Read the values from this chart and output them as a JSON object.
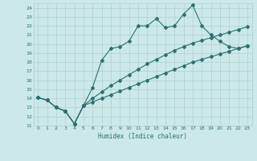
{
  "title": "",
  "xlabel": "Humidex (Indice chaleur)",
  "ylabel": "",
  "bg_color": "#cce8e8",
  "grid_color": "#b0d0d0",
  "line_color": "#2d7070",
  "xlim": [
    -0.5,
    23.5
  ],
  "ylim": [
    11,
    24.5
  ],
  "xticks": [
    0,
    1,
    2,
    3,
    4,
    5,
    6,
    7,
    8,
    9,
    10,
    11,
    12,
    13,
    14,
    15,
    16,
    17,
    18,
    19,
    20,
    21,
    22,
    23
  ],
  "yticks": [
    11,
    12,
    13,
    14,
    15,
    16,
    17,
    18,
    19,
    20,
    21,
    22,
    23,
    24
  ],
  "line1_x": [
    0,
    1,
    2,
    3,
    4,
    5,
    6,
    7,
    8,
    9,
    10,
    11,
    12,
    13,
    14,
    15,
    16,
    17,
    18,
    19,
    20,
    21,
    22,
    23
  ],
  "line1_y": [
    14.1,
    13.8,
    13.0,
    12.6,
    11.2,
    13.2,
    15.2,
    18.2,
    19.5,
    19.7,
    20.3,
    22.0,
    22.0,
    22.8,
    21.8,
    22.0,
    23.3,
    24.3,
    22.0,
    21.0,
    20.3,
    19.7,
    19.5,
    19.8
  ],
  "line2_x": [
    0,
    1,
    2,
    3,
    4,
    5,
    6,
    7,
    8,
    9,
    10,
    11,
    12,
    13,
    14,
    15,
    16,
    17,
    18,
    19,
    20,
    21,
    22,
    23
  ],
  "line2_y": [
    14.1,
    13.8,
    13.0,
    12.6,
    11.2,
    13.2,
    14.0,
    14.7,
    15.4,
    16.0,
    16.6,
    17.2,
    17.8,
    18.3,
    18.8,
    19.3,
    19.7,
    20.1,
    20.4,
    20.7,
    21.0,
    21.3,
    21.6,
    21.9
  ],
  "line3_x": [
    0,
    1,
    2,
    3,
    4,
    5,
    6,
    7,
    8,
    9,
    10,
    11,
    12,
    13,
    14,
    15,
    16,
    17,
    18,
    19,
    20,
    21,
    22,
    23
  ],
  "line3_y": [
    14.1,
    13.8,
    13.0,
    12.6,
    11.2,
    13.2,
    13.6,
    14.0,
    14.4,
    14.8,
    15.2,
    15.6,
    16.0,
    16.4,
    16.8,
    17.2,
    17.6,
    18.0,
    18.3,
    18.6,
    18.9,
    19.2,
    19.5,
    19.8
  ],
  "marker": "D",
  "markersize": 2.0,
  "linewidth": 0.8
}
